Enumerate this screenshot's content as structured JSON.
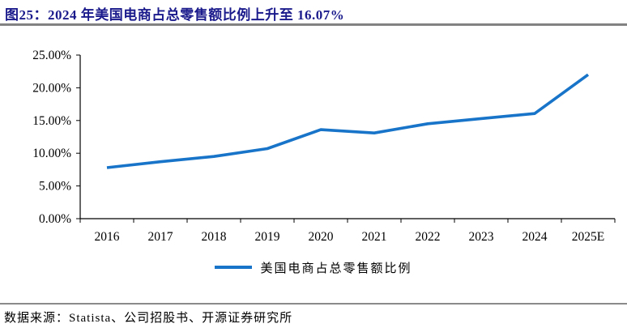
{
  "header": {
    "title": "图25：2024 年美国电商占总零售额比例上升至 16.07%"
  },
  "chart_data": {
    "type": "line",
    "categories": [
      "2016",
      "2017",
      "2018",
      "2019",
      "2020",
      "2021",
      "2022",
      "2023",
      "2024",
      "2025E"
    ],
    "series": [
      {
        "name": "美国电商占总零售额比例",
        "values": [
          7.8,
          8.7,
          9.5,
          10.7,
          13.6,
          13.1,
          14.5,
          15.3,
          16.07,
          22.0
        ]
      }
    ],
    "unit": "%",
    "ylim": [
      0,
      25
    ],
    "ytick_step": 5,
    "yticklabels": [
      "0.00%",
      "5.00%",
      "10.00%",
      "15.00%",
      "20.00%",
      "25.00%"
    ],
    "xlabel": "",
    "ylabel": "",
    "grid": false,
    "legend_position": "bottom",
    "highlight_value_2024": "16.07%"
  },
  "legend": {
    "label": "美国电商占总零售额比例"
  },
  "footer": {
    "source": "数据来源：Statista、公司招股书、开源证券研究所"
  },
  "colors": {
    "title": "#1a1a8c",
    "line": "#1874c8",
    "rule": "#8a8a8a",
    "axis": "#000000",
    "tick_label": "#000000"
  }
}
